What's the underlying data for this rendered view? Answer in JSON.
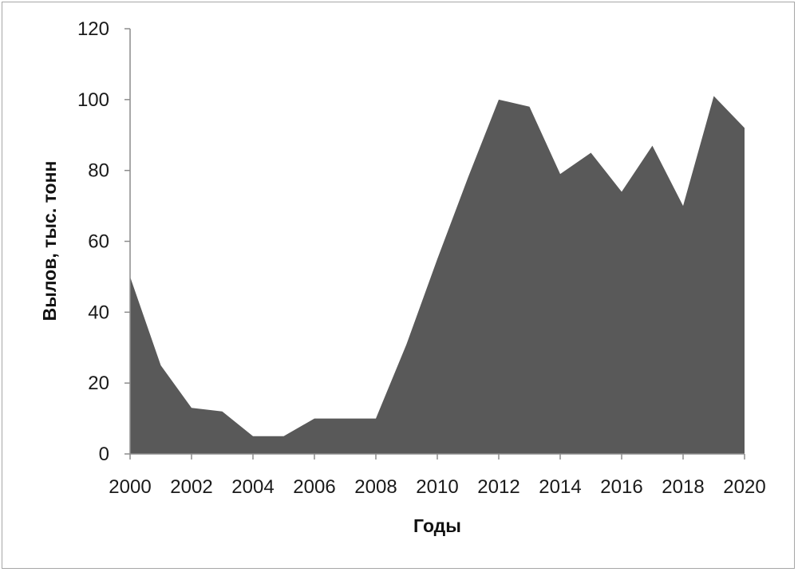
{
  "chart_data": {
    "type": "area",
    "title": "",
    "xlabel": "Годы",
    "ylabel": "Вылов, тыс. тонн",
    "x": [
      2000,
      2001,
      2002,
      2003,
      2004,
      2005,
      2006,
      2007,
      2008,
      2009,
      2010,
      2011,
      2012,
      2013,
      2014,
      2015,
      2016,
      2017,
      2018,
      2019,
      2020
    ],
    "values": [
      50,
      25,
      13,
      12,
      5,
      5,
      10,
      10,
      10,
      31,
      55,
      78,
      100,
      98,
      79,
      85,
      74,
      87,
      70,
      101,
      92
    ],
    "xlim": [
      2000,
      2020
    ],
    "ylim": [
      0,
      120
    ],
    "x_ticks": [
      "2000",
      "2002",
      "2004",
      "2006",
      "2008",
      "2010",
      "2012",
      "2014",
      "2016",
      "2018",
      "2020"
    ],
    "y_ticks": [
      "0",
      "20",
      "40",
      "60",
      "80",
      "100",
      "120"
    ],
    "grid": false,
    "legend": "none",
    "fill_color": "#595959"
  }
}
